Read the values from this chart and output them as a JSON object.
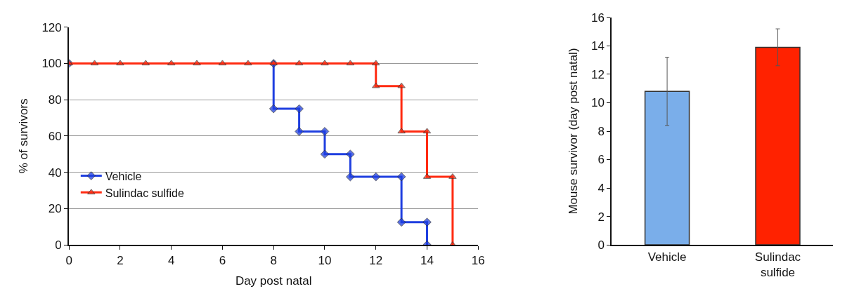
{
  "chart_data": [
    {
      "type": "line",
      "xlabel": "Day post natal",
      "ylabel": "% of survivors",
      "xlim": [
        0,
        16
      ],
      "xticks": [
        0,
        2,
        4,
        6,
        8,
        10,
        12,
        14,
        16
      ],
      "ylim": [
        0,
        120
      ],
      "yticks": [
        0,
        20,
        40,
        60,
        80,
        100,
        120
      ],
      "grid": "y",
      "legend": "center left",
      "series": [
        {
          "name": "Vehicle",
          "color": "#1f3fe0",
          "marker": "diamond",
          "x": [
            0,
            1,
            2,
            3,
            4,
            5,
            6,
            7,
            8,
            8,
            9,
            9,
            10,
            10,
            11,
            11,
            12,
            13,
            13,
            14,
            14
          ],
          "values": [
            100,
            null,
            null,
            null,
            null,
            null,
            null,
            null,
            100,
            75,
            75,
            62.5,
            62.5,
            50,
            50,
            37.5,
            37.5,
            37.5,
            12.5,
            12.5,
            0
          ]
        },
        {
          "name": "Sulindac sulfide",
          "color": "#ff2a10",
          "marker": "triangle",
          "x": [
            0,
            1,
            2,
            3,
            4,
            5,
            6,
            7,
            8,
            9,
            10,
            11,
            12,
            12,
            13,
            13,
            14,
            14,
            15,
            15
          ],
          "values": [
            100,
            100,
            100,
            100,
            100,
            100,
            100,
            100,
            100,
            100,
            100,
            100,
            100,
            87.5,
            87.5,
            62.5,
            62.5,
            37.5,
            37.5,
            0
          ]
        }
      ]
    },
    {
      "type": "bar",
      "ylabel": "Mouse survivor (day post natal)",
      "categories": [
        "Vehicle",
        "Sulindac sulfide"
      ],
      "values": [
        10.8,
        13.9
      ],
      "errors": [
        2.4,
        1.3
      ],
      "colors": [
        "#7aaeea",
        "#ff2200"
      ],
      "ylim": [
        0,
        16
      ],
      "yticks": [
        0,
        2,
        4,
        6,
        8,
        10,
        12,
        14,
        16
      ],
      "grid": false,
      "legend": false
    }
  ]
}
